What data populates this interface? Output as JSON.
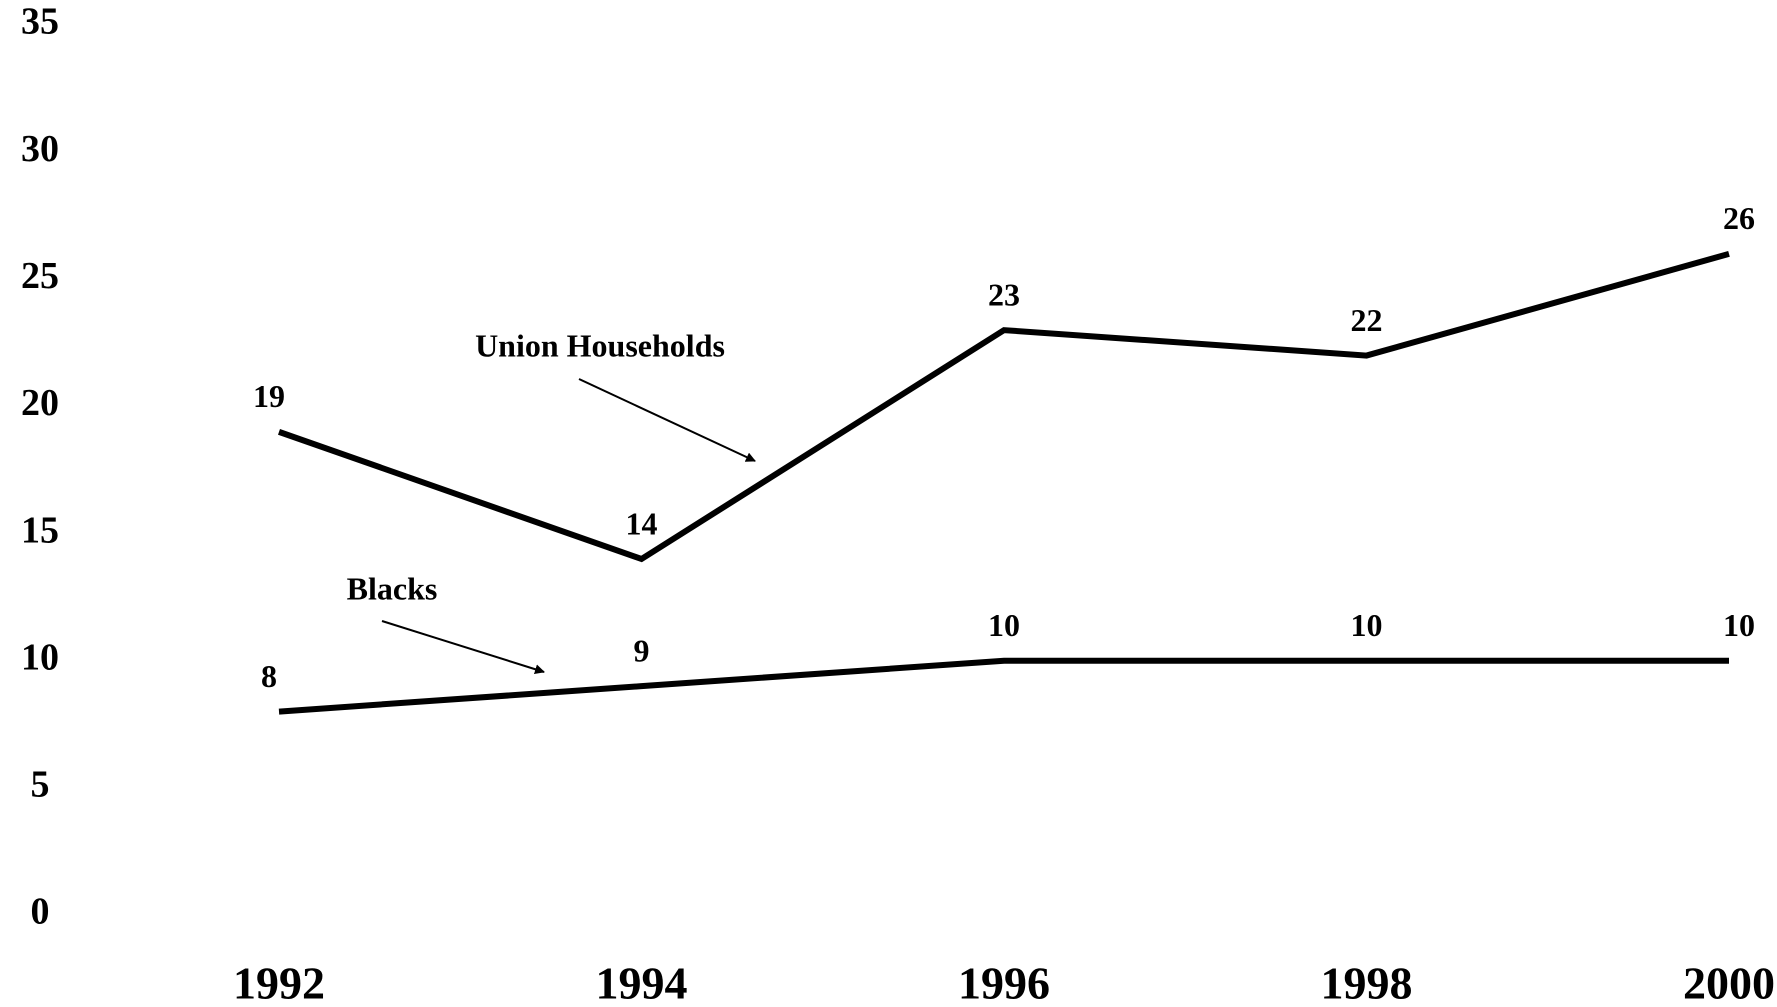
{
  "chart_data": {
    "type": "line",
    "x": [
      1992,
      1994,
      1996,
      1998,
      2000
    ],
    "series": [
      {
        "name": "Union Households",
        "color": "#000000",
        "values": [
          19,
          14,
          23,
          22,
          26
        ]
      },
      {
        "name": "Blacks",
        "color": "#000000",
        "values": [
          8,
          9,
          10,
          10,
          10
        ]
      }
    ],
    "xlim": [
      1992,
      2000
    ],
    "xticks": [
      1992,
      1994,
      1996,
      1998,
      2000
    ],
    "ylim": [
      0,
      35
    ],
    "yticks": [
      0,
      5,
      10,
      15,
      20,
      25,
      30,
      35
    ],
    "grid": false
  }
}
